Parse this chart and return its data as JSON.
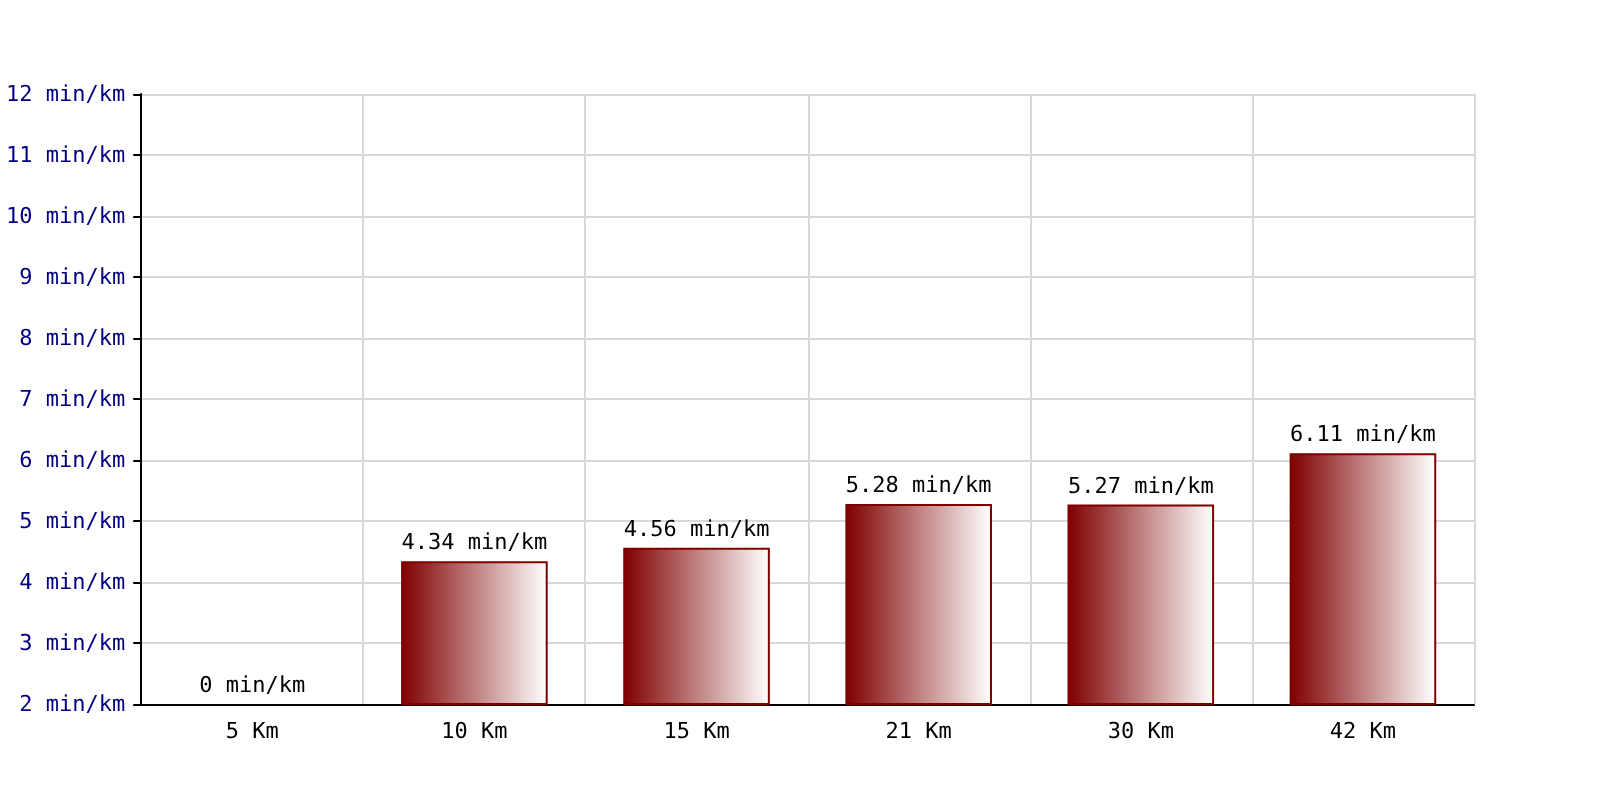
{
  "chart_data": {
    "type": "bar",
    "categories": [
      "5 Km",
      "10 Km",
      "15 Km",
      "21 Km",
      "30 Km",
      "42 Km"
    ],
    "values": [
      null,
      4.34,
      4.56,
      5.28,
      5.27,
      6.11
    ],
    "value_labels": [
      "0 min/km",
      "4.34 min/km",
      "4.56 min/km",
      "5.28 min/km",
      "5.27 min/km",
      "6.11 min/km"
    ],
    "color": "#800000",
    "ylim": [
      2,
      12
    ],
    "yticks": [
      {
        "value": 2,
        "label": "2 min/km"
      },
      {
        "value": 3,
        "label": "3 min/km"
      },
      {
        "value": 4,
        "label": "4 min/km"
      },
      {
        "value": 5,
        "label": "5 min/km"
      },
      {
        "value": 6,
        "label": "6 min/km"
      },
      {
        "value": 7,
        "label": "7 min/km"
      },
      {
        "value": 8,
        "label": "8 min/km"
      },
      {
        "value": 9,
        "label": "9 min/km"
      },
      {
        "value": 10,
        "label": "10 min/km"
      },
      {
        "value": 11,
        "label": "11 min/km"
      },
      {
        "value": 12,
        "label": "12 min/km"
      }
    ],
    "grid": true
  }
}
